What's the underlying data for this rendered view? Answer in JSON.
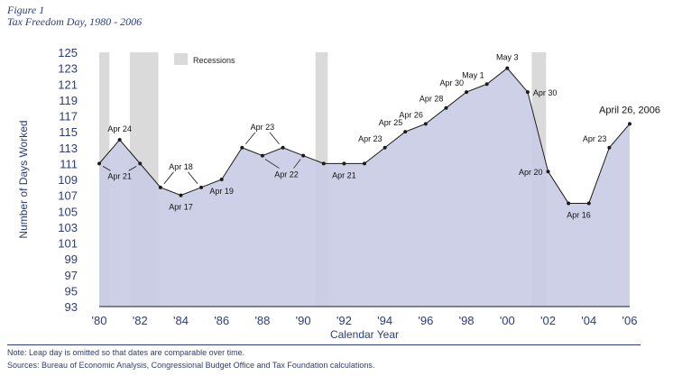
{
  "figure": {
    "label": "Figure 1",
    "title": "Tax Freedom Day, 1980 - 2006"
  },
  "colors": {
    "area_fill": "#c8cbe4",
    "line": "#1b1b1b",
    "recession": "#dadada",
    "text": "#2b3d7a"
  },
  "chart_data": {
    "type": "area",
    "title": "Tax Freedom Day, 1980 - 2006",
    "xlabel": "Calendar Year",
    "ylabel": "Number of Days Worked",
    "ylim": [
      93,
      125
    ],
    "yticks": [
      93,
      95,
      97,
      99,
      101,
      103,
      105,
      107,
      109,
      111,
      113,
      115,
      117,
      119,
      121,
      123,
      125
    ],
    "xlim": [
      1980,
      2006
    ],
    "xticks": [
      {
        "year": 1980,
        "label": "'80"
      },
      {
        "year": 1982,
        "label": "'82"
      },
      {
        "year": 1984,
        "label": "'84"
      },
      {
        "year": 1986,
        "label": "'86"
      },
      {
        "year": 1988,
        "label": "'88"
      },
      {
        "year": 1990,
        "label": "'90"
      },
      {
        "year": 1992,
        "label": "'92"
      },
      {
        "year": 1994,
        "label": "'94"
      },
      {
        "year": 1996,
        "label": "'96"
      },
      {
        "year": 1998,
        "label": "'98"
      },
      {
        "year": 2000,
        "label": "'00"
      },
      {
        "year": 2002,
        "label": "'02"
      },
      {
        "year": 2004,
        "label": "'04"
      },
      {
        "year": 2006,
        "label": "'06"
      }
    ],
    "grid": false,
    "legend": {
      "position": "top-left",
      "entries": [
        "Recessions"
      ]
    },
    "recessions": [
      [
        1980,
        1980.5
      ],
      [
        1981.5,
        1982.9
      ],
      [
        1990.6,
        1991.2
      ],
      [
        2001.2,
        2001.9
      ]
    ],
    "series": [
      {
        "name": "",
        "x": [
          1980,
          1981,
          1982,
          1983,
          1984,
          1985,
          1986,
          1987,
          1988,
          1989,
          1990,
          1991,
          1992,
          1993,
          1994,
          1995,
          1996,
          1997,
          1998,
          1999,
          2000,
          2001,
          2002,
          2003,
          2004,
          2005,
          2006
        ],
        "y": [
          111,
          114,
          111,
          108,
          107,
          108,
          109,
          113,
          112,
          113,
          112,
          111,
          111,
          111,
          113,
          115,
          116,
          118,
          120,
          121,
          123,
          120,
          110,
          106,
          106,
          113,
          116
        ]
      }
    ],
    "annotations": [
      {
        "text": "Apr 24",
        "x": 1981,
        "y": 114,
        "pos": "above"
      },
      {
        "text": "Apr 21",
        "x": 1981,
        "y": 111,
        "pos": "between",
        "pointers": [
          [
            1980,
            111
          ],
          [
            1982,
            111
          ]
        ]
      },
      {
        "text": "Apr 18",
        "x": 1984,
        "y": 107,
        "pos": "above-pointers",
        "pointers": [
          [
            1983,
            108
          ],
          [
            1985,
            108
          ]
        ]
      },
      {
        "text": "Apr 17",
        "x": 1984,
        "y": 107,
        "pos": "below"
      },
      {
        "text": "Apr 19",
        "x": 1986,
        "y": 109,
        "pos": "below"
      },
      {
        "text": "Apr 23",
        "x": 1988,
        "y": 112,
        "pos": "above-pointers",
        "pointers": [
          [
            1987,
            113
          ],
          [
            1989,
            113
          ]
        ]
      },
      {
        "text": "Apr 22",
        "x": 1988,
        "y": 112,
        "pos": "below-pointers",
        "pointers": [
          [
            1988,
            112
          ],
          [
            1990,
            112
          ]
        ]
      },
      {
        "text": "Apr 21",
        "x": 1992,
        "y": 111,
        "pos": "below"
      },
      {
        "text": "Apr 23",
        "x": 1994,
        "y": 113,
        "pos": "above-left"
      },
      {
        "text": "Apr 25",
        "x": 1995,
        "y": 115,
        "pos": "above-left"
      },
      {
        "text": "Apr 26",
        "x": 1996,
        "y": 116,
        "pos": "above-left"
      },
      {
        "text": "Apr 28",
        "x": 1997,
        "y": 118,
        "pos": "above-left"
      },
      {
        "text": "Apr 30",
        "x": 1998,
        "y": 120,
        "pos": "above-left"
      },
      {
        "text": "May 1",
        "x": 1999,
        "y": 121,
        "pos": "above-left"
      },
      {
        "text": "May 3",
        "x": 2000,
        "y": 123,
        "pos": "above"
      },
      {
        "text": "Apr 30",
        "x": 2001,
        "y": 120,
        "pos": "right"
      },
      {
        "text": "Apr 20",
        "x": 2002,
        "y": 110,
        "pos": "left"
      },
      {
        "text": "Apr 16",
        "x": 2003.5,
        "y": 106,
        "pos": "below"
      },
      {
        "text": "Apr 23",
        "x": 2005,
        "y": 113,
        "pos": "above-left"
      },
      {
        "text": "April 26, 2006",
        "x": 2006,
        "y": 116,
        "pos": "above-large"
      }
    ]
  },
  "notes": {
    "note": "Note: Leap day is omitted so that dates are comparable over time.",
    "sources": "Sources: Bureau of Economic Analysis, Congressional Budget Office and Tax Foundation calculations."
  }
}
